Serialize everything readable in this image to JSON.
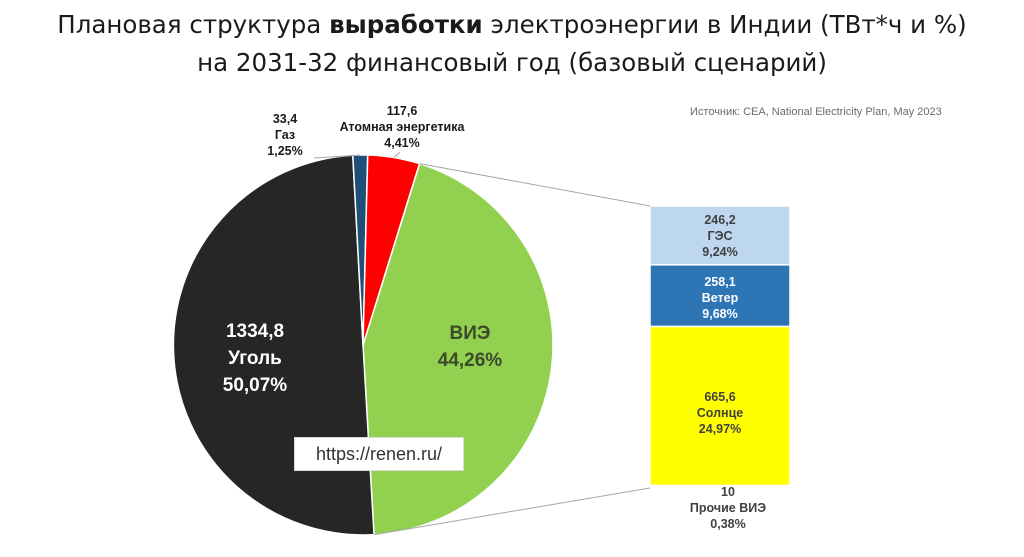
{
  "title": {
    "line1_pre": "Плановая структура ",
    "line1_bold": "выработки",
    "line1_post": " электроэнергии в Индии (ТВт*ч и %)",
    "line2": "на 2031-32 финансовый год (базовый сценарий)"
  },
  "source": "Источник: CEA, National Electricity Plan, May 2023",
  "watermark": "https://renen.ru/",
  "colors": {
    "coal": "#262626",
    "gas": "#1f4e79",
    "nuclear": "#ff0000",
    "res": "#92d050",
    "hydro": "#bdd7ee",
    "wind": "#2e75b6",
    "solar": "#ffff00",
    "other": "#ffffff"
  },
  "chart_data": {
    "type": "pie",
    "unit": "ТВт*ч",
    "pie": [
      {
        "key": "res",
        "name": "ВИЭ",
        "percent_label": "44,26%",
        "share": 44.26
      },
      {
        "key": "coal",
        "name": "Уголь",
        "value_label": "1334,8",
        "percent_label": "50,07%",
        "share": 50.07
      },
      {
        "key": "gas",
        "name": "Газ",
        "value_label": "33,4",
        "percent_label": "1,25%",
        "share": 1.25
      },
      {
        "key": "nuclear",
        "name": "Атомная энергетика",
        "value_label": "117,6",
        "percent_label": "4,41%",
        "share": 4.41
      }
    ],
    "breakdown_of": "ВИЭ",
    "breakdown": [
      {
        "key": "hydro",
        "name": "ГЭС",
        "value_label": "246,2",
        "percent_label": "9,24%",
        "share": 9.24
      },
      {
        "key": "wind",
        "name": "Ветер",
        "value_label": "258,1",
        "percent_label": "9,68%",
        "share": 9.68
      },
      {
        "key": "solar",
        "name": "Солнце",
        "value_label": "665,6",
        "percent_label": "24,97%",
        "share": 24.97
      },
      {
        "key": "other",
        "name": "Прочие ВИЭ",
        "value_label": "10",
        "percent_label": "0,38%",
        "share": 0.38
      }
    ]
  }
}
